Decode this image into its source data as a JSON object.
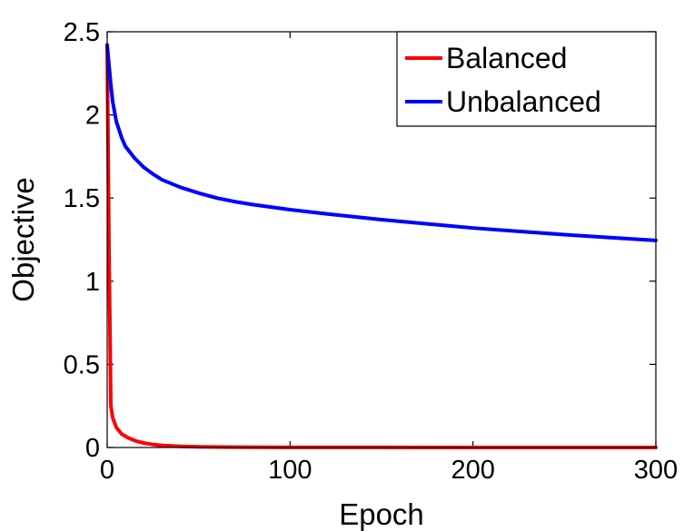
{
  "chart_data": {
    "type": "line",
    "title": "",
    "xlabel": "Epoch",
    "ylabel": "Objective",
    "xlim": [
      0,
      300
    ],
    "ylim": [
      0,
      2.5
    ],
    "xticks": [
      0,
      100,
      200,
      300
    ],
    "xtick_labels": [
      "0",
      "100",
      "200",
      "300"
    ],
    "yticks": [
      0,
      0.5,
      1,
      1.5,
      2,
      2.5
    ],
    "ytick_labels": [
      "0",
      "0.5",
      "1",
      "1.5",
      "2",
      "2.5"
    ],
    "grid": false,
    "legend_position": "top-right",
    "series": [
      {
        "name": "Balanced",
        "color": "#ff0000",
        "x": [
          0,
          1,
          2,
          3,
          5,
          8,
          12,
          16,
          20,
          25,
          30,
          40,
          50,
          70,
          100,
          150,
          200,
          250,
          300
        ],
        "values": [
          2.42,
          1.2,
          0.25,
          0.18,
          0.12,
          0.08,
          0.055,
          0.038,
          0.027,
          0.018,
          0.012,
          0.007,
          0.004,
          0.002,
          0.001,
          0.0005,
          0.0003,
          0.0002,
          0.0001
        ]
      },
      {
        "name": "Unbalanced",
        "color": "#0000ff",
        "x": [
          0,
          1,
          2,
          3,
          5,
          8,
          10,
          15,
          20,
          25,
          30,
          40,
          50,
          60,
          70,
          80,
          100,
          120,
          150,
          175,
          200,
          225,
          250,
          275,
          300
        ],
        "values": [
          2.42,
          2.3,
          2.18,
          2.08,
          1.96,
          1.86,
          1.81,
          1.74,
          1.685,
          1.645,
          1.61,
          1.565,
          1.53,
          1.5,
          1.478,
          1.46,
          1.43,
          1.405,
          1.37,
          1.345,
          1.32,
          1.3,
          1.28,
          1.262,
          1.245
        ]
      }
    ]
  }
}
